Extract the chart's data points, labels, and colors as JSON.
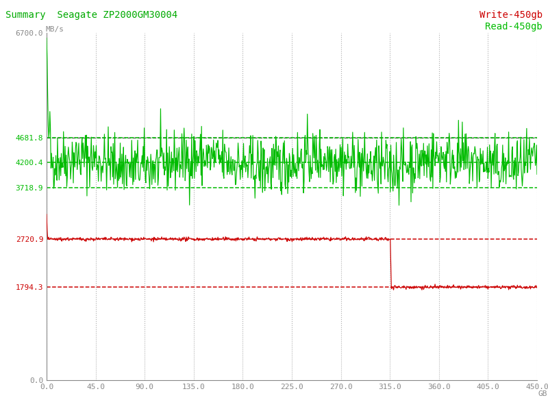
{
  "title_part1": "Summary",
  "title_part2": "  Seagate ZP2000GM30004",
  "ylabel": "MB/s",
  "xlim": [
    0.0,
    450.0
  ],
  "ylim": [
    0.0,
    6700.0
  ],
  "xticks": [
    0.0,
    45.0,
    90.0,
    135.0,
    180.0,
    225.0,
    270.0,
    315.0,
    360.0,
    405.0,
    450.0
  ],
  "green_hlines": [
    4681.8,
    4200.4,
    3718.9
  ],
  "red_hlines": [
    2720.9,
    1794.3
  ],
  "black_hline": 4681.8,
  "write_drop_x": 315.0,
  "write_level_high": 2720.9,
  "write_level_low": 1794.3,
  "read_mean": 4200.4,
  "legend_write": "Write-450gb",
  "legend_read": "Read-450gb",
  "bg_color": "#ffffff",
  "green_color": "#00bb00",
  "red_color": "#cc0000",
  "black_dash_color": "#555555",
  "grid_color": "#aaaaaa",
  "title_color": "#00aa00",
  "tick_color": "#888888",
  "axis_color": "#888888",
  "n_points": 900,
  "seed": 42
}
